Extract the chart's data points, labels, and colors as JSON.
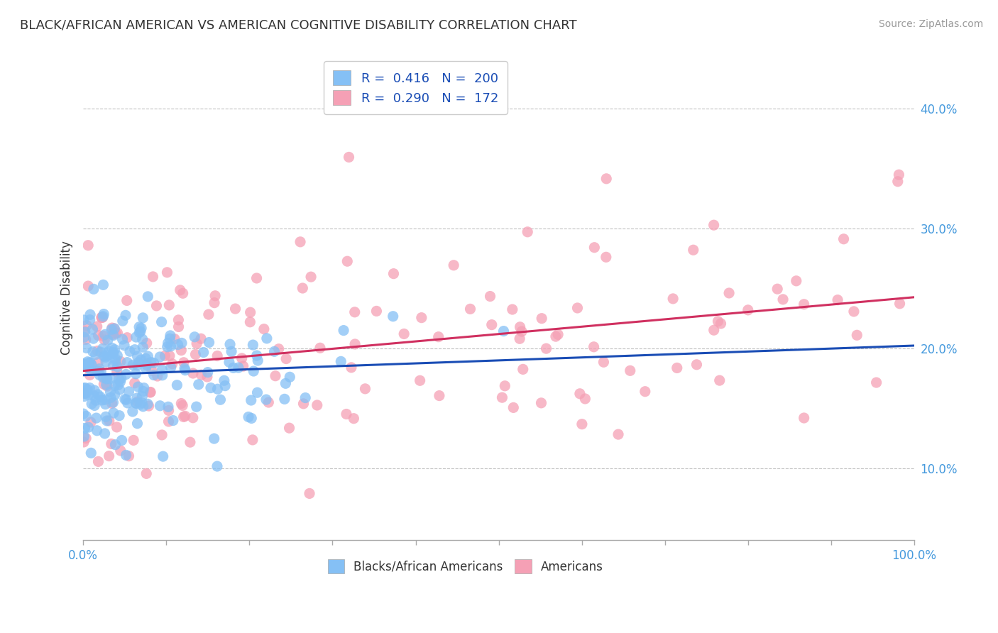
{
  "title": "BLACK/AFRICAN AMERICAN VS AMERICAN COGNITIVE DISABILITY CORRELATION CHART",
  "source": "Source: ZipAtlas.com",
  "ylabel": "Cognitive Disability",
  "xlabel": "",
  "xlim": [
    0.0,
    1.0
  ],
  "ylim": [
    0.04,
    0.445
  ],
  "yticks": [
    0.1,
    0.2,
    0.3,
    0.4
  ],
  "ytick_labels": [
    "10.0%",
    "20.0%",
    "30.0%",
    "40.0%"
  ],
  "xticks": [
    0.0,
    0.1,
    0.2,
    0.3,
    0.4,
    0.5,
    0.6,
    0.7,
    0.8,
    0.9,
    1.0
  ],
  "xtick_labels": [
    "0.0%",
    "",
    "",
    "",
    "",
    "",
    "",
    "",
    "",
    "",
    "100.0%"
  ],
  "blue_R": 0.416,
  "blue_N": 200,
  "pink_R": 0.29,
  "pink_N": 172,
  "blue_color": "#85C0F5",
  "blue_line_color": "#1A4DB5",
  "pink_color": "#F5A0B5",
  "pink_line_color": "#D03060",
  "title_color": "#333333",
  "source_color": "#999999",
  "grid_color": "#BBBBBB",
  "tick_color": "#4499DD",
  "background_color": "#FFFFFF",
  "blue_seed": 12,
  "pink_seed": 55
}
